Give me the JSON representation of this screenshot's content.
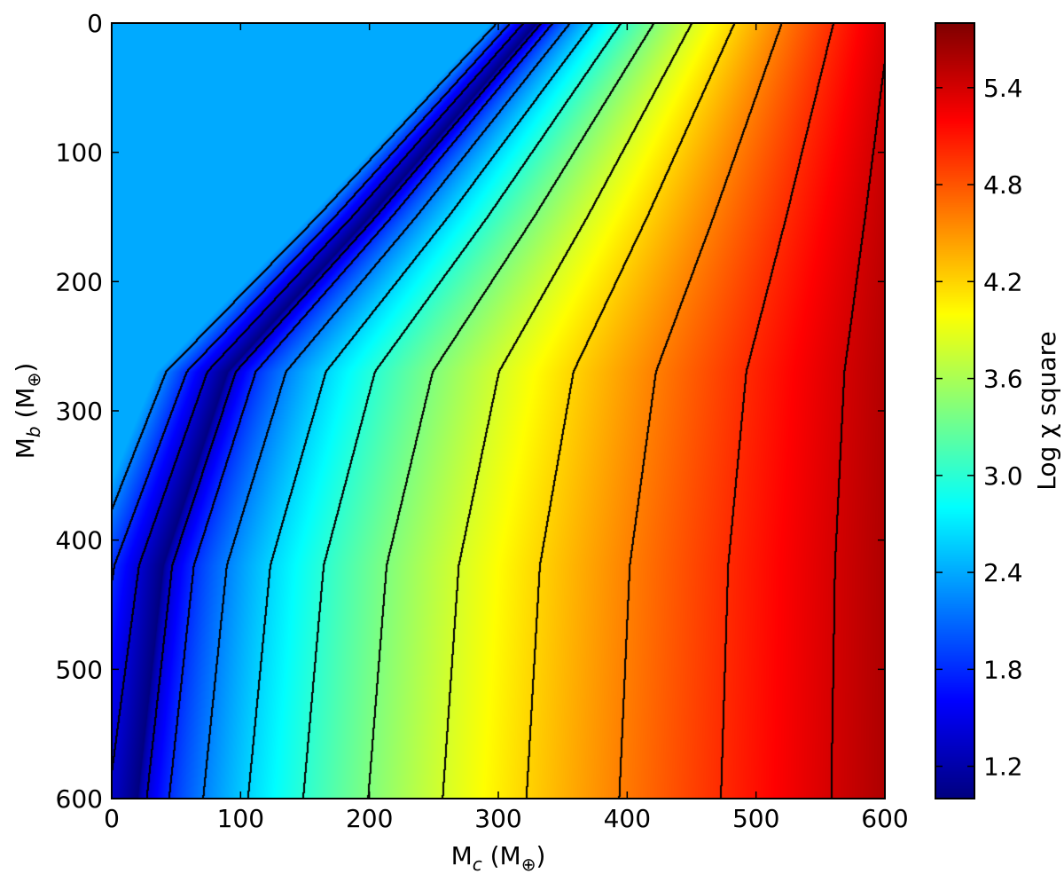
{
  "chart_data": {
    "type": "heatmap",
    "title": "",
    "xlabel": {
      "base": "M",
      "sub": "c",
      "rest": " (M",
      "sub2": "⊕",
      "close": ")"
    },
    "ylabel": {
      "base": "M",
      "sub": "b",
      "rest": " (M",
      "sub2": "⊕",
      "close": ")"
    },
    "xlim": [
      0,
      600
    ],
    "ylim": [
      0,
      600
    ],
    "y_inverted": true,
    "x_ticks": [
      "0",
      "100",
      "200",
      "300",
      "400",
      "500",
      "600"
    ],
    "y_ticks": [
      "0",
      "100",
      "200",
      "300",
      "400",
      "500",
      "600"
    ],
    "colorbar": {
      "label": "Log χ square",
      "range": [
        1.0,
        5.8
      ],
      "ticks": [
        "1.2",
        "1.8",
        "2.4",
        "3.0",
        "3.6",
        "4.2",
        "4.8",
        "5.4"
      ],
      "colormap": "jet"
    },
    "contours": true,
    "valley": {
      "description_points": [
        [
          20,
          600
        ],
        [
          40,
          420
        ],
        [
          90,
          270
        ],
        [
          200,
          150
        ],
        [
          330,
          0
        ]
      ],
      "min_value": 1.0
    },
    "corner_values": {
      "top_left": 2.4,
      "bottom_right": 5.8
    }
  }
}
